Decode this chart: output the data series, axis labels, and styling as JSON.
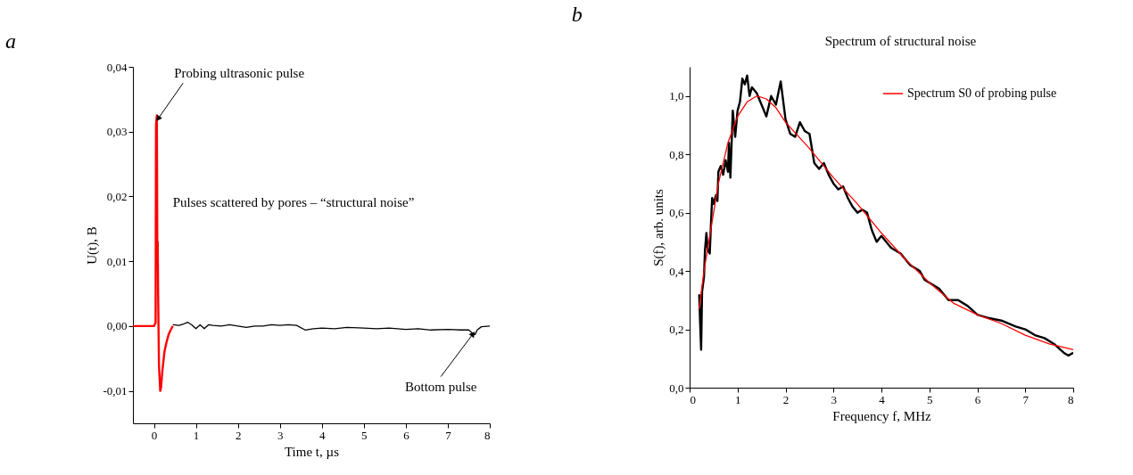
{
  "chart_data": [
    {
      "type": "line",
      "title": "a",
      "xlabel": "Time t, µs",
      "ylabel": "U(t),  B",
      "xlim": [
        -0.5,
        8
      ],
      "xticks": [
        0,
        1,
        2,
        3,
        4,
        5,
        6,
        7,
        8
      ],
      "ylim": [
        -0.015,
        0.04
      ],
      "yticks": [
        {
          "value": -0.01,
          "label": "-0,01"
        },
        {
          "value": 0,
          "label": "0,00"
        },
        {
          "value": 0.01,
          "label": "0,01"
        },
        {
          "value": 0.02,
          "label": "0,02"
        },
        {
          "value": 0.03,
          "label": "0,03"
        },
        {
          "value": 0.04,
          "label": "0,04"
        }
      ],
      "grid": false,
      "legend": false,
      "series": [
        {
          "color": "#ff0000",
          "x": [
            -0.5,
            0.0,
            0.04,
            0.05,
            0.07,
            0.08,
            0.09,
            0.1,
            0.12,
            0.15,
            0.17,
            0.2,
            0.25,
            0.3,
            0.35,
            0.4,
            0.45
          ],
          "values": [
            0,
            0,
            0.0005,
            0.031,
            0.0325,
            0.013,
            0.013,
            0.005,
            -0.006,
            -0.01,
            -0.0095,
            -0.007,
            -0.004,
            -0.0025,
            -0.0013,
            -0.0006,
            0
          ]
        },
        {
          "color": "#000000",
          "x": [
            0.45,
            0.6,
            0.7,
            0.8,
            0.9,
            1.0,
            1.1,
            1.2,
            1.3,
            1.4,
            1.6,
            1.8,
            2.0,
            2.2,
            2.4,
            2.6,
            2.8,
            3.0,
            3.2,
            3.4,
            3.6,
            3.8,
            4.0,
            4.3,
            4.6,
            5.0,
            5.3,
            5.6,
            6.0,
            6.3,
            6.6,
            7.0,
            7.3,
            7.5,
            7.6,
            7.65,
            7.7,
            7.8,
            8.0
          ],
          "values": [
            0.0002,
            0.0001,
            0.0003,
            0.0006,
            0.0002,
            -0.0004,
            0.0002,
            -0.0004,
            0.0002,
            0.0001,
            0.0,
            0.0002,
            0.0,
            -0.0002,
            0.0,
            0.0,
            0.0002,
            0.0001,
            0.0002,
            0.0001,
            -0.0006,
            -0.0004,
            -0.0003,
            -0.0004,
            -0.0002,
            -0.0003,
            -0.0004,
            -0.0003,
            -0.0005,
            -0.0004,
            -0.0006,
            -0.0005,
            -0.0006,
            -0.0006,
            -0.0012,
            -0.0013,
            -0.0006,
            -0.0001,
            0.0
          ]
        }
      ],
      "annotations": [
        {
          "text": "Probing ultrasonic pulse",
          "x": 0.1,
          "y": 0.032
        },
        "Pulses scattered by pores – “structural noise”",
        {
          "text": "Bottom pulse",
          "x": 7.6,
          "y": -0.0012
        }
      ]
    },
    {
      "type": "line",
      "title": "b",
      "xlabel": "Frequency f, MHz",
      "ylabel": "S(f), arb. units",
      "xlim": [
        0,
        8
      ],
      "xticks": [
        0,
        1,
        2,
        3,
        4,
        5,
        6,
        7,
        8
      ],
      "ylim": [
        0,
        1.1
      ],
      "yticks": [
        {
          "value": 0,
          "label": "0,0"
        },
        {
          "value": 0.2,
          "label": "0,2"
        },
        {
          "value": 0.4,
          "label": "0,4"
        },
        {
          "value": 0.6,
          "label": "0,6"
        },
        {
          "value": 0.8,
          "label": "0,8"
        },
        {
          "value": 1.0,
          "label": "1,0"
        }
      ],
      "grid": false,
      "legend": "top right",
      "series": [
        {
          "color": "#000000",
          "x": [
            0.2,
            0.22,
            0.24,
            0.26,
            0.3,
            0.32,
            0.35,
            0.38,
            0.42,
            0.45,
            0.47,
            0.5,
            0.55,
            0.58,
            0.6,
            0.65,
            0.7,
            0.75,
            0.8,
            0.82,
            0.85,
            0.9,
            0.95,
            1.0,
            1.05,
            1.1,
            1.15,
            1.2,
            1.25,
            1.3,
            1.4,
            1.5,
            1.6,
            1.7,
            1.8,
            1.9,
            2.0,
            2.1,
            2.2,
            2.3,
            2.4,
            2.5,
            2.6,
            2.7,
            2.8,
            2.9,
            3.0,
            3.1,
            3.2,
            3.3,
            3.4,
            3.5,
            3.6,
            3.7,
            3.8,
            3.9,
            4.0,
            4.2,
            4.4,
            4.5,
            4.6,
            4.8,
            4.9,
            5.0,
            5.2,
            5.4,
            5.6,
            5.8,
            6.0,
            6.2,
            6.5,
            6.8,
            7.0,
            7.2,
            7.4,
            7.6,
            7.8,
            7.9,
            8.0
          ],
          "values": [
            0.32,
            0.22,
            0.13,
            0.33,
            0.38,
            0.47,
            0.53,
            0.47,
            0.46,
            0.58,
            0.65,
            0.63,
            0.66,
            0.64,
            0.74,
            0.76,
            0.73,
            0.78,
            0.74,
            0.84,
            0.72,
            0.95,
            0.86,
            0.95,
            0.98,
            1.06,
            1.04,
            1.07,
            1.0,
            1.03,
            1.01,
            0.97,
            0.93,
            1.0,
            0.97,
            1.05,
            0.92,
            0.87,
            0.86,
            0.91,
            0.88,
            0.87,
            0.77,
            0.75,
            0.77,
            0.73,
            0.7,
            0.68,
            0.69,
            0.65,
            0.62,
            0.6,
            0.61,
            0.6,
            0.54,
            0.5,
            0.52,
            0.48,
            0.46,
            0.44,
            0.42,
            0.4,
            0.37,
            0.36,
            0.34,
            0.3,
            0.3,
            0.28,
            0.25,
            0.24,
            0.23,
            0.21,
            0.2,
            0.18,
            0.17,
            0.15,
            0.12,
            0.11,
            0.12
          ]
        },
        {
          "name": "Spectrum S0 of probing pulse",
          "color": "#ff0000",
          "x": [
            0.2,
            0.3,
            0.4,
            0.5,
            0.6,
            0.8,
            1.0,
            1.2,
            1.4,
            1.6,
            1.8,
            2.0,
            2.5,
            3.0,
            3.5,
            4.0,
            4.5,
            5.0,
            5.5,
            6.0,
            6.5,
            7.0,
            7.5,
            8.0
          ],
          "values": [
            0.27,
            0.4,
            0.5,
            0.6,
            0.7,
            0.84,
            0.93,
            0.98,
            1.0,
            0.99,
            0.96,
            0.91,
            0.82,
            0.72,
            0.63,
            0.53,
            0.44,
            0.36,
            0.29,
            0.25,
            0.22,
            0.18,
            0.15,
            0.13
          ]
        }
      ],
      "annotations": [
        "Spectrum of structural noise"
      ]
    }
  ]
}
